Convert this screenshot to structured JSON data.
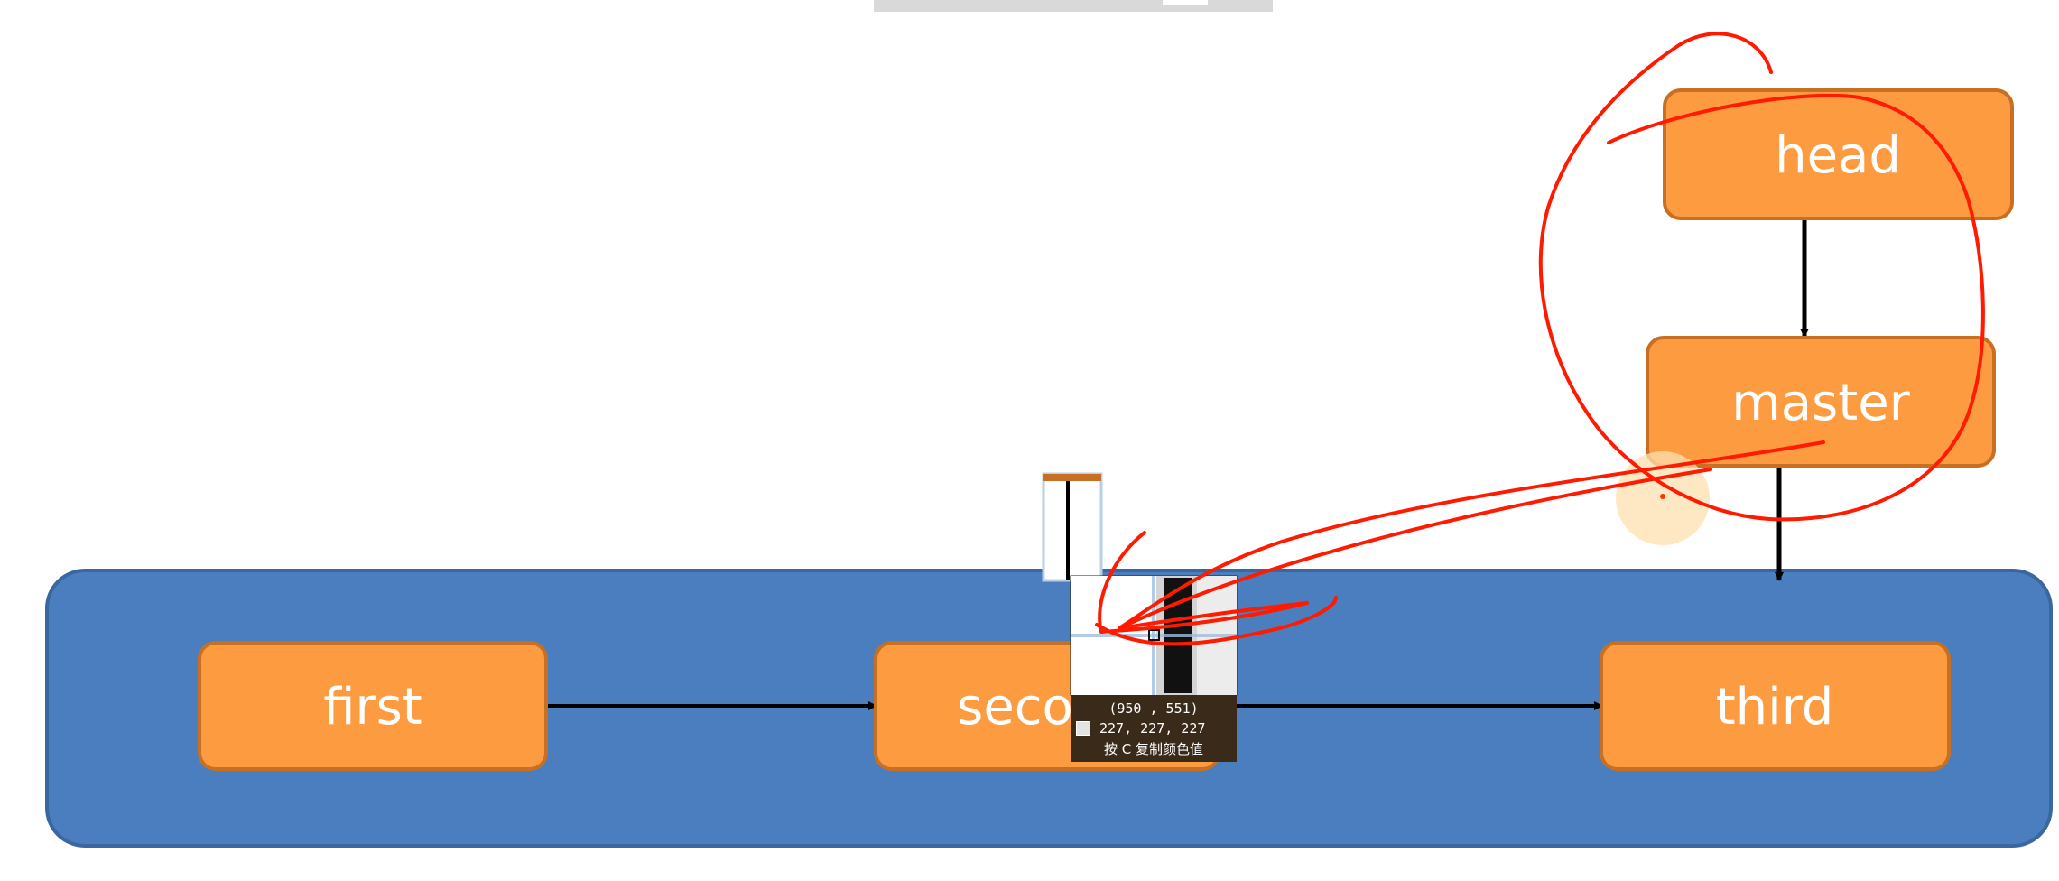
{
  "diagram": {
    "nodes": {
      "first": "first",
      "second": "second",
      "third": "third",
      "head": "head",
      "master": "master"
    }
  },
  "color_picker": {
    "coords": "(950 , 551)",
    "rgb": "227, 227, 227",
    "hint": "按 C 复制颜色值",
    "swatch_color": "#e3e3e3"
  },
  "colors": {
    "container_fill": "#4a7ebf",
    "container_stroke": "#3a67a0",
    "node_fill": "#fd9b40",
    "node_stroke": "#c76f22",
    "arrow": "#000000",
    "annotation": "#ff1a00",
    "cursor_highlight": "#fde0b0"
  }
}
